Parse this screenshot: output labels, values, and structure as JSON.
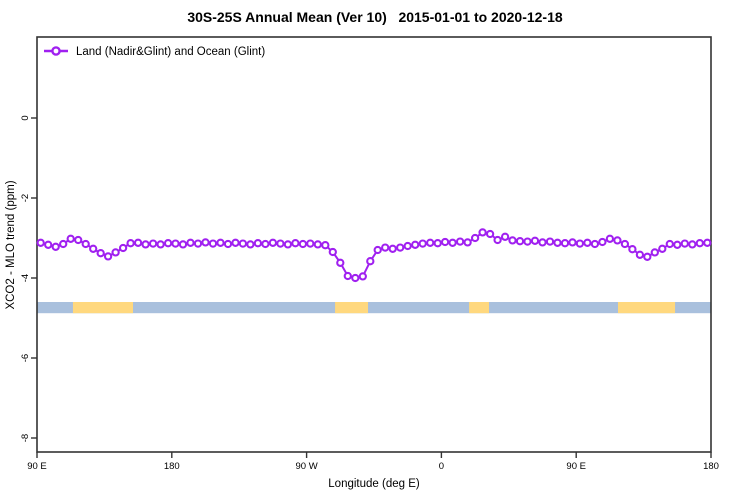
{
  "title": "30S-25S Annual Mean (Ver 10)   2015-01-01 to 2020-12-18",
  "legend": {
    "label": "Land (Nadir&Glint) and Ocean (Glint)",
    "marker": "open-circle-on-line",
    "color": "#A020F0"
  },
  "colors": {
    "series": "#A020F0",
    "marker_fill": "#ffffff",
    "band_base": "#A9C0DD",
    "band_highlight": "#FFD87E",
    "frame": "#333333",
    "text": "#000000"
  },
  "axes": {
    "x": {
      "label": "Longitude (deg E)",
      "range": [
        90,
        540
      ],
      "ticks": [
        {
          "value": 90,
          "label": "90 E"
        },
        {
          "value": 180,
          "label": "180"
        },
        {
          "value": 270,
          "label": "90 W"
        },
        {
          "value": 360,
          "label": "0"
        },
        {
          "value": 450,
          "label": "90 E"
        },
        {
          "value": 540,
          "label": "180"
        }
      ]
    },
    "y": {
      "label": "XCO2 - MLO trend (ppm)",
      "range": [
        2.03,
        -8.35
      ],
      "ticks": [
        {
          "value": 0,
          "label": "0"
        },
        {
          "value": -2,
          "label": "-2"
        },
        {
          "value": -4,
          "label": "-4"
        },
        {
          "value": -6,
          "label": "-6"
        },
        {
          "value": -8,
          "label": "-8"
        }
      ]
    }
  },
  "chart_data": {
    "type": "line",
    "title": "30S-25S Annual Mean (Ver 10)   2015-01-01 to 2020-12-18",
    "xlabel": "Longitude (deg E)",
    "ylabel": "XCO2 - MLO trend (ppm)",
    "xlim": [
      90,
      540
    ],
    "ylim": [
      2.03,
      -8.35
    ],
    "grid": false,
    "legend_position": "top-left",
    "series": [
      {
        "name": "Land (Nadir&Glint) and Ocean (Glint)",
        "color": "#A020F0",
        "marker": "open-circle",
        "x": [
          92.5,
          97.5,
          102.5,
          107.5,
          112.5,
          117.5,
          122.5,
          127.5,
          132.5,
          137.5,
          142.5,
          147.5,
          152.5,
          157.5,
          162.5,
          167.5,
          172.5,
          177.5,
          182.5,
          187.5,
          192.5,
          197.5,
          202.5,
          207.5,
          212.5,
          217.5,
          222.5,
          227.5,
          232.5,
          237.5,
          242.5,
          247.5,
          252.5,
          257.5,
          262.5,
          267.5,
          272.5,
          277.5,
          282.5,
          287.5,
          292.5,
          297.5,
          302.5,
          307.5,
          312.5,
          317.5,
          322.5,
          327.5,
          332.5,
          337.5,
          342.5,
          347.5,
          352.5,
          357.5,
          362.5,
          367.5,
          372.5,
          377.5,
          382.5,
          387.5,
          392.5,
          397.5,
          402.5,
          407.5,
          412.5,
          417.5,
          422.5,
          427.5,
          432.5,
          437.5,
          442.5,
          447.5,
          452.5,
          457.5,
          462.5,
          467.5,
          472.5,
          477.5,
          482.5,
          487.5,
          492.5,
          497.5,
          502.5,
          507.5,
          512.5,
          517.5,
          522.5,
          527.5,
          532.5,
          537.5
        ],
        "y": [
          -3.12,
          -3.17,
          -3.22,
          -3.15,
          -3.02,
          -3.05,
          -3.15,
          -3.27,
          -3.38,
          -3.46,
          -3.36,
          -3.25,
          -3.13,
          -3.12,
          -3.16,
          -3.14,
          -3.16,
          -3.13,
          -3.14,
          -3.16,
          -3.12,
          -3.14,
          -3.11,
          -3.14,
          -3.12,
          -3.15,
          -3.12,
          -3.14,
          -3.16,
          -3.13,
          -3.15,
          -3.12,
          -3.14,
          -3.16,
          -3.13,
          -3.15,
          -3.14,
          -3.16,
          -3.18,
          -3.35,
          -3.62,
          -3.95,
          -4.0,
          -3.96,
          -3.58,
          -3.3,
          -3.24,
          -3.27,
          -3.24,
          -3.2,
          -3.17,
          -3.14,
          -3.12,
          -3.13,
          -3.1,
          -3.12,
          -3.09,
          -3.11,
          -3.0,
          -2.86,
          -2.9,
          -3.05,
          -2.97,
          -3.06,
          -3.08,
          -3.09,
          -3.07,
          -3.11,
          -3.09,
          -3.12,
          -3.13,
          -3.11,
          -3.14,
          -3.12,
          -3.15,
          -3.1,
          -3.02,
          -3.06,
          -3.15,
          -3.28,
          -3.42,
          -3.47,
          -3.36,
          -3.27,
          -3.15,
          -3.17,
          -3.14,
          -3.16,
          -3.13,
          -3.12
        ]
      }
    ],
    "band": {
      "y_top": -4.6,
      "y_bottom": -4.88,
      "base_range": [
        90,
        540
      ],
      "base_color": "#A9C0DD",
      "highlight_color": "#FFD87E",
      "highlight_segments": [
        [
          114.0,
          154.1
        ],
        [
          289.0,
          311.0
        ],
        [
          378.5,
          391.8
        ],
        [
          477.9,
          516.0
        ]
      ]
    }
  }
}
